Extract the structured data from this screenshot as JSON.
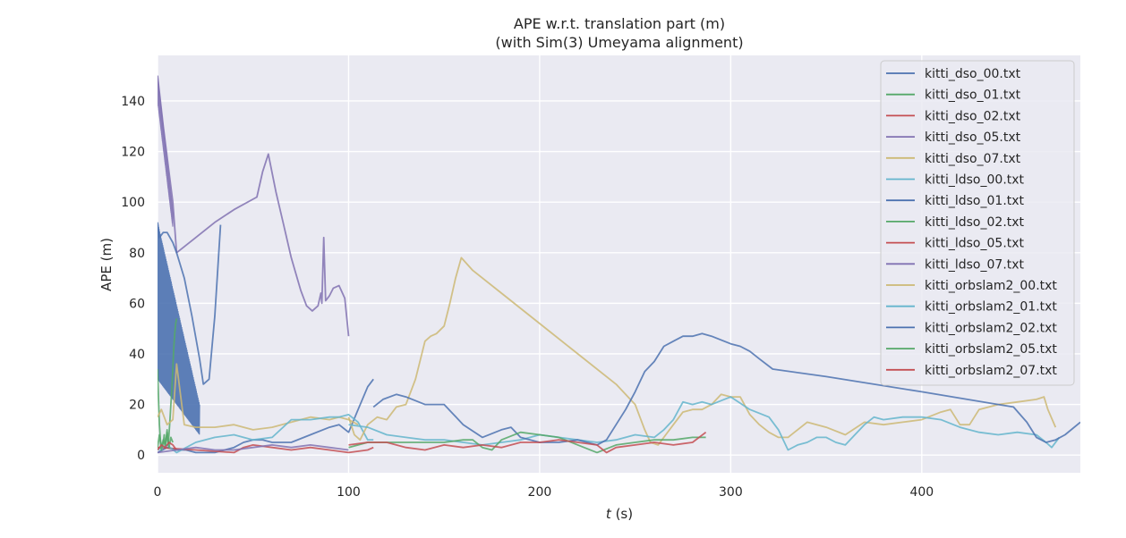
{
  "chart_data": {
    "type": "line",
    "title": "APE w.r.t. translation part (m)",
    "subtitle": "(with Sim(3) Umeyama alignment)",
    "xlabel_italic": "t",
    "xlabel_unit": " (s)",
    "ylabel": "APE (m)",
    "xlim": [
      0,
      483
    ],
    "ylim": [
      -7,
      158
    ],
    "xticks": [
      0,
      100,
      200,
      300,
      400
    ],
    "yticks": [
      0,
      20,
      40,
      60,
      80,
      100,
      120,
      140
    ],
    "grid": true,
    "legend_position": "top-right",
    "series": [
      {
        "name": "kitti_dso_00.txt",
        "color": "#4c72b0",
        "x": [
          0,
          5,
          10,
          15,
          20,
          30,
          40,
          45,
          50,
          55,
          60,
          70,
          80,
          90,
          95,
          100,
          105,
          110,
          113
        ],
        "y": [
          1,
          3,
          2,
          2,
          1,
          1,
          3,
          5,
          6,
          6,
          5,
          5,
          8,
          11,
          12,
          9,
          18,
          27,
          30
        ]
      },
      {
        "name": "kitti_dso_01.txt",
        "color": "#55a868",
        "x": [
          0,
          0.5,
          1,
          1.5,
          2,
          2.5,
          3,
          3.5,
          4,
          4.5,
          5,
          5.5,
          6,
          6.5,
          7,
          7.5,
          8,
          8.5,
          9,
          9.5,
          10
        ],
        "y": [
          34,
          22,
          12,
          6,
          4,
          3,
          5,
          8,
          3,
          6,
          10,
          4,
          8,
          14,
          20,
          26,
          34,
          42,
          48,
          52,
          54
        ]
      },
      {
        "name": "kitti_dso_02.txt",
        "color": "#c44e52",
        "x": [
          0,
          20,
          40,
          45,
          50,
          60,
          70,
          80,
          90,
          100,
          110,
          113
        ],
        "y": [
          3,
          2,
          1,
          3,
          4,
          3,
          2,
          3,
          2,
          1,
          2,
          3
        ]
      },
      {
        "name": "kitti_dso_05.txt",
        "color": "#8172b2",
        "x": [
          0,
          3,
          6,
          8,
          10,
          20,
          30,
          40,
          52,
          55,
          58,
          62,
          66,
          70,
          75,
          78,
          81,
          84,
          85.5,
          86,
          87,
          88,
          90,
          92,
          95,
          98,
          100
        ],
        "y": [
          150,
          130,
          112,
          100,
          80,
          86,
          92,
          97,
          102,
          112,
          119,
          104,
          91,
          78,
          65,
          59,
          57,
          59,
          64,
          60,
          86,
          61,
          63,
          66,
          67,
          62,
          47
        ]
      },
      {
        "name": "kitti_dso_07.txt",
        "color": "#ccb974",
        "x": [
          0,
          2,
          5,
          8,
          10,
          14,
          20,
          30,
          40,
          50,
          60,
          70,
          80,
          90,
          95,
          100,
          105
        ],
        "y": [
          15,
          18,
          12,
          14,
          36,
          12,
          11,
          11,
          12,
          10,
          11,
          13,
          15,
          14,
          15,
          14,
          12
        ]
      },
      {
        "name": "kitti_ldso_00.txt",
        "color": "#64b5cd",
        "x": [
          0,
          5,
          10,
          20,
          30,
          40,
          50,
          60,
          70,
          80,
          90,
          95,
          100,
          105,
          110,
          113
        ],
        "y": [
          2,
          4,
          1,
          5,
          7,
          8,
          6,
          7,
          14,
          14,
          15,
          15,
          16,
          13,
          6,
          6
        ]
      },
      {
        "name": "kitti_ldso_01.txt",
        "color": "#4c72b0",
        "x": [
          0,
          1,
          3,
          5,
          8,
          10,
          14,
          18,
          22,
          24,
          27,
          30,
          33
        ],
        "y": [
          92,
          86,
          88,
          88,
          84,
          80,
          70,
          55,
          38,
          28,
          30,
          55,
          91
        ]
      },
      {
        "name": "kitti_ldso_02.txt",
        "color": "#55a868",
        "x": [
          0,
          1,
          2,
          3,
          4,
          5,
          6,
          7,
          8
        ],
        "y": [
          3,
          8,
          2,
          6,
          4,
          9,
          3,
          7,
          5
        ]
      },
      {
        "name": "kitti_ldso_05.txt",
        "color": "#c44e52",
        "x": [
          0,
          2,
          4,
          6,
          8,
          10
        ],
        "y": [
          2,
          4,
          3,
          5,
          4,
          2
        ]
      },
      {
        "name": "kitti_ldso_07.txt",
        "color": "#8172b2",
        "x": [
          0,
          10,
          20,
          30,
          40,
          50,
          60,
          70,
          80,
          90,
          100
        ],
        "y": [
          1,
          2,
          3,
          2,
          2,
          3,
          4,
          3,
          4,
          3,
          2
        ]
      },
      {
        "name": "kitti_orbslam2_00.txt",
        "color": "#ccb974",
        "x": [
          100,
          103,
          106,
          110,
          115,
          120,
          125,
          130,
          135,
          140,
          143,
          146,
          150,
          153,
          156,
          159,
          165,
          180,
          200,
          220,
          240,
          250,
          255,
          258,
          262,
          266,
          270,
          275,
          280,
          285,
          290,
          295,
          300,
          305,
          310,
          315,
          320,
          325,
          330,
          335,
          340,
          350,
          360,
          370,
          380,
          390,
          400,
          410,
          415,
          420,
          425,
          430,
          440,
          450,
          460,
          464,
          466,
          470
        ],
        "y": [
          15,
          8,
          6,
          12,
          15,
          14,
          19,
          20,
          30,
          45,
          47,
          48,
          51,
          60,
          70,
          78,
          73,
          64,
          52,
          40,
          28,
          20,
          10,
          5,
          4,
          8,
          12,
          17,
          18,
          18,
          20,
          24,
          23,
          23,
          16,
          12,
          9,
          7,
          7,
          10,
          13,
          11,
          8,
          13,
          12,
          13,
          14,
          17,
          18,
          12,
          12,
          18,
          20,
          21,
          22,
          23,
          18,
          11
        ]
      },
      {
        "name": "kitti_orbslam2_01.txt",
        "color": "#64b5cd",
        "x": [
          100,
          110,
          120,
          130,
          140,
          150,
          160,
          170,
          180,
          190,
          200,
          210,
          220,
          230,
          240,
          250,
          260,
          265,
          270,
          275,
          280,
          285,
          290,
          300,
          310,
          320,
          325,
          330,
          335,
          340,
          345,
          350,
          355,
          360,
          365,
          370,
          375,
          380,
          390,
          400,
          410,
          420,
          430,
          440,
          450,
          460,
          465,
          468,
          472
        ],
        "y": [
          12,
          11,
          8,
          7,
          6,
          6,
          5,
          4,
          5,
          6,
          8,
          7,
          6,
          5,
          6,
          8,
          7,
          10,
          14,
          21,
          20,
          21,
          20,
          23,
          18,
          15,
          10,
          2,
          4,
          5,
          7,
          7,
          5,
          4,
          8,
          12,
          15,
          14,
          15,
          15,
          14,
          11,
          9,
          8,
          9,
          8,
          5,
          3,
          7
        ]
      },
      {
        "name": "kitti_orbslam2_02.txt",
        "color": "#4c72b0",
        "x": [
          113,
          118,
          125,
          130,
          140,
          150,
          160,
          170,
          180,
          185,
          190,
          200,
          210,
          220,
          230,
          235,
          240,
          245,
          250,
          255,
          260,
          265,
          270,
          275,
          280,
          285,
          290,
          300,
          305,
          310,
          315,
          322,
          350,
          400,
          440,
          448,
          455,
          460,
          465,
          470,
          475,
          483
        ],
        "y": [
          19,
          22,
          24,
          23,
          20,
          20,
          12,
          7,
          10,
          11,
          7,
          5,
          5,
          6,
          4,
          6,
          12,
          18,
          25,
          33,
          37,
          43,
          45,
          47,
          47,
          48,
          47,
          44,
          43,
          41,
          38,
          34,
          31,
          25,
          20,
          19,
          13,
          7,
          5,
          6,
          8,
          13
        ]
      },
      {
        "name": "kitti_orbslam2_05.txt",
        "color": "#55a868",
        "x": [
          100,
          110,
          120,
          130,
          140,
          150,
          160,
          165,
          170,
          175,
          180,
          190,
          200,
          210,
          220,
          230,
          240,
          250,
          260,
          270,
          280,
          287
        ],
        "y": [
          3,
          5,
          5,
          5,
          5,
          5,
          6,
          6,
          3,
          2,
          6,
          9,
          8,
          7,
          4,
          1,
          4,
          5,
          6,
          6,
          7,
          7
        ]
      },
      {
        "name": "kitti_orbslam2_07.txt",
        "color": "#c44e52",
        "x": [
          100,
          110,
          120,
          130,
          140,
          150,
          160,
          170,
          180,
          190,
          200,
          210,
          220,
          230,
          235,
          240,
          250,
          260,
          270,
          280,
          287
        ],
        "y": [
          4,
          5,
          5,
          3,
          2,
          4,
          3,
          4,
          3,
          5,
          5,
          6,
          5,
          4,
          1,
          3,
          4,
          5,
          4,
          5,
          9
        ]
      }
    ],
    "osc_bands": [
      {
        "color": "#4c72b0",
        "x0": 0,
        "x1": 22,
        "top_from": 92,
        "top_to": 20,
        "bottom_from": 30,
        "bottom_to": 8
      },
      {
        "color": "#8172b2",
        "x0": 0,
        "x1": 8,
        "top_from": 150,
        "top_to": 96,
        "bottom_from": 140,
        "bottom_to": 90
      }
    ]
  }
}
